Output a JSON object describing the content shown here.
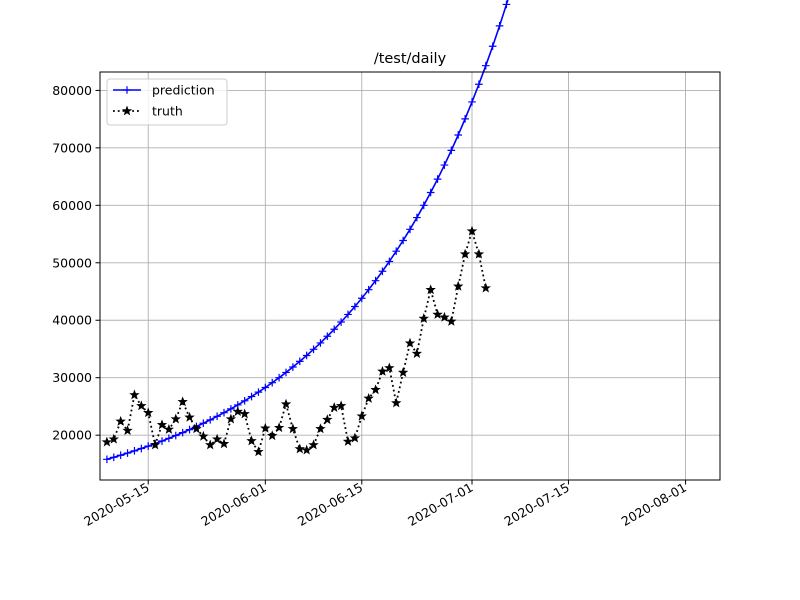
{
  "chart_data": {
    "type": "line",
    "title": "/test/daily",
    "xlabel": "",
    "ylabel": "",
    "x_start": "2020-05-09",
    "x_range": [
      "2020-05-08",
      "2020-08-06"
    ],
    "xticks": [
      "2020-05-15",
      "2020-06-01",
      "2020-06-15",
      "2020-07-01",
      "2020-07-15",
      "2020-08-01"
    ],
    "ylim": [
      12200,
      83200
    ],
    "yticks": [
      20000,
      30000,
      40000,
      50000,
      60000,
      70000,
      80000
    ],
    "grid": true,
    "legend_position": "top-left",
    "series": [
      {
        "name": "prediction",
        "color": "#0000ff",
        "linestyle": "solid",
        "marker": "plus",
        "a": 15800,
        "r": 0.02167,
        "d": 0.0001595,
        "n": 86
      },
      {
        "name": "truth",
        "color": "#000000",
        "linestyle": "dotted",
        "marker": "star",
        "values": [
          18800,
          19300,
          22400,
          20800,
          27000,
          25100,
          23900,
          18300,
          21800,
          21000,
          22800,
          25800,
          23100,
          21100,
          19800,
          18300,
          19300,
          18500,
          22800,
          24100,
          23700,
          19000,
          17100,
          21200,
          19900,
          21300,
          25400,
          21100,
          17600,
          17400,
          18300,
          21100,
          22700,
          24800,
          25100,
          18900,
          19500,
          23300,
          26400,
          27900,
          31100,
          31700,
          25600,
          30900,
          36000,
          34200,
          40300,
          45300,
          41000,
          40500,
          39800,
          45900,
          51500,
          55500,
          51500,
          45600
        ]
      }
    ]
  }
}
